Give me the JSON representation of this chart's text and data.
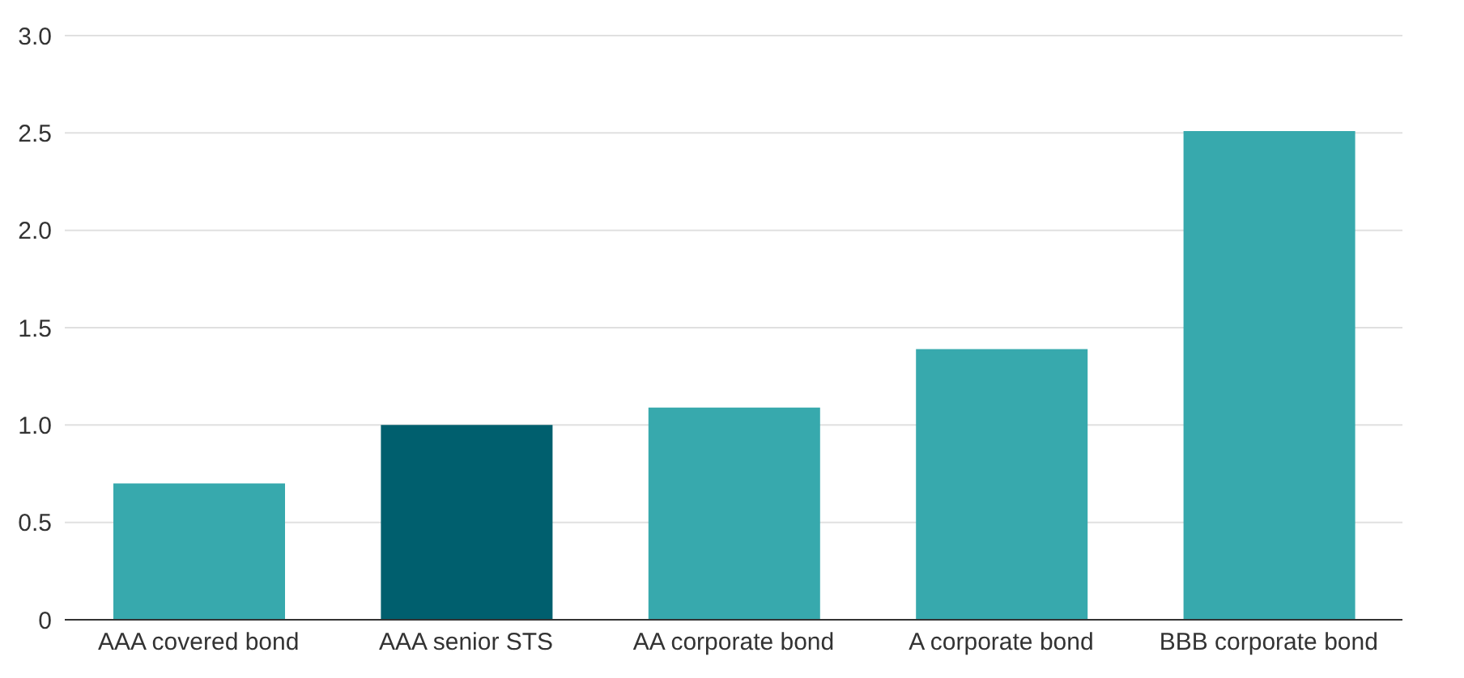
{
  "chart_data": {
    "type": "bar",
    "categories": [
      "AAA covered bond",
      "AAA senior STS",
      "AA corporate bond",
      "A corporate bond",
      "BBB corporate bond"
    ],
    "values": [
      0.7,
      1.0,
      1.09,
      1.39,
      2.51
    ],
    "colors": [
      "#37a9ad",
      "#005f6e",
      "#37a9ad",
      "#37a9ad",
      "#37a9ad"
    ],
    "ylim": [
      0,
      3
    ],
    "yticks": [
      0,
      0.5,
      {
        "value": 1,
        "label": "1.0"
      },
      1.5,
      {
        "value": 2,
        "label": "2.0"
      },
      2.5,
      {
        "value": 3,
        "label": "3.0"
      }
    ],
    "grid": "y"
  }
}
